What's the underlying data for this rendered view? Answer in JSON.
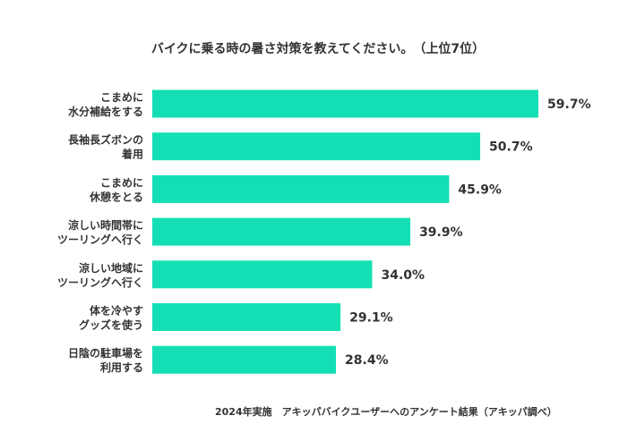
{
  "chart_data": {
    "type": "bar",
    "orientation": "horizontal",
    "title": "バイクに乗る時の暑さ対策を教えてください。　（上位7位）",
    "categories": [
      [
        "こまめに",
        "水分補給をする"
      ],
      [
        "長袖長ズボンの",
        "着用"
      ],
      [
        "こまめに",
        "休憩をとる"
      ],
      [
        "涼しい時間帯に",
        "ツーリングへ行く"
      ],
      [
        "涼しい地域に",
        "ツーリングへ行く"
      ],
      [
        "体を冷やす",
        "グッズを使う"
      ],
      [
        "日陰の駐車場を",
        "利用する"
      ]
    ],
    "values": [
      59.7,
      50.7,
      45.9,
      39.9,
      34.0,
      29.1,
      28.4
    ],
    "value_labels": [
      "59.7%",
      "50.7%",
      "45.9%",
      "39.9%",
      "34.0%",
      "29.1%",
      "28.4%"
    ],
    "unit": "%",
    "bar_color": "#14dfb4",
    "footnote": "2024年実施　アキッパバイクユーザーへのアンケート結果（アキッパ調べ）"
  }
}
